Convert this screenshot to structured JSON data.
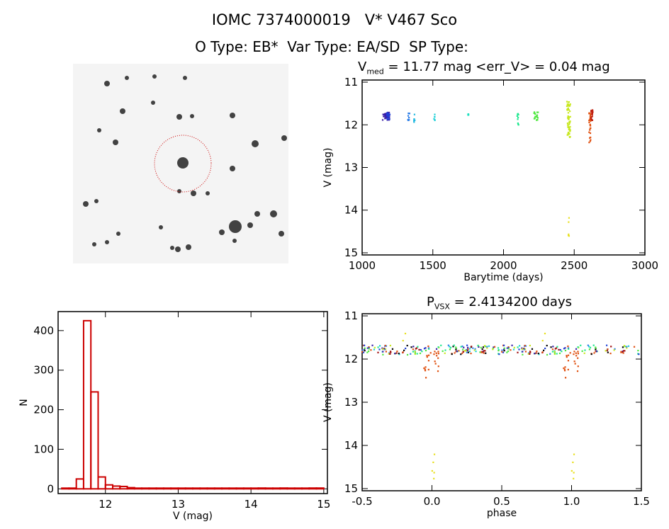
{
  "title": "IOMC 7374000019   V* V467 Sco",
  "subtitle": "O Type: EB*  Var Type: EA/SD  SP Type:",
  "chart_data": [
    {
      "type": "scatter",
      "name": "light-curve",
      "title_pre": "V",
      "title_sub": "med",
      "title_post": " = 11.77 mag <err_V> = 0.04 mag",
      "xlabel": "Barytime (days)",
      "ylabel": "V (mag)",
      "xlim": [
        1000,
        3000
      ],
      "ylim": [
        15.05,
        10.95
      ],
      "xticks": [
        1000,
        1500,
        2000,
        2500,
        3000
      ],
      "yticks": [
        11,
        12,
        13,
        14,
        15
      ],
      "clusters": [
        {
          "x": 1170,
          "dx": 25,
          "y0": 11.7,
          "y1": 11.9,
          "n": 40,
          "color": "#3a1fa8"
        },
        {
          "x": 1185,
          "dx": 10,
          "y0": 11.72,
          "y1": 11.88,
          "n": 15,
          "color": "#1f3fd8"
        },
        {
          "x": 1330,
          "dx": 6,
          "y0": 11.68,
          "y1": 11.9,
          "n": 10,
          "color": "#2f7fe8"
        },
        {
          "x": 1370,
          "dx": 4,
          "y0": 11.75,
          "y1": 11.95,
          "n": 6,
          "color": "#20b8e0"
        },
        {
          "x": 1510,
          "dx": 4,
          "y0": 11.75,
          "y1": 11.9,
          "n": 6,
          "color": "#20d0d8"
        },
        {
          "x": 1750,
          "dx": 3,
          "y0": 11.72,
          "y1": 11.8,
          "n": 4,
          "color": "#20e0c0"
        },
        {
          "x": 2100,
          "dx": 6,
          "y0": 11.7,
          "y1": 12.0,
          "n": 10,
          "color": "#20e890"
        },
        {
          "x": 2230,
          "dx": 15,
          "y0": 11.7,
          "y1": 11.9,
          "n": 20,
          "color": "#50e840"
        },
        {
          "x": 2460,
          "dx": 12,
          "y0": 11.45,
          "y1": 12.3,
          "n": 60,
          "color": "#c8e820"
        },
        {
          "x": 2462,
          "dx": 4,
          "y0": 14.1,
          "y1": 14.9,
          "n": 5,
          "color": "#e8e020"
        },
        {
          "x": 2610,
          "dx": 6,
          "y0": 11.7,
          "y1": 12.45,
          "n": 25,
          "color": "#e05010"
        },
        {
          "x": 2625,
          "dx": 6,
          "y0": 11.65,
          "y1": 11.9,
          "n": 20,
          "color": "#c02010"
        }
      ]
    },
    {
      "type": "bar",
      "name": "histogram",
      "xlabel": "V (mag)",
      "ylabel": "N",
      "xlim": [
        11.35,
        15.05
      ],
      "ylim": [
        -12,
        448
      ],
      "xticks": [
        12,
        13,
        14,
        15
      ],
      "yticks": [
        0,
        100,
        200,
        300,
        400
      ],
      "bin_width": 0.1,
      "bin_starts": [
        11.4,
        11.5,
        11.6,
        11.7,
        11.8,
        11.9,
        12.0,
        12.1,
        12.2,
        12.3,
        12.4,
        12.5,
        12.6,
        12.7,
        12.8,
        12.9,
        13.0,
        13.1,
        13.2,
        13.3,
        13.4,
        13.5,
        13.6,
        13.7,
        13.8,
        13.9,
        14.0,
        14.1,
        14.2,
        14.3,
        14.4,
        14.5,
        14.6,
        14.7,
        14.8,
        14.9
      ],
      "values": [
        1,
        1,
        25,
        425,
        245,
        30,
        10,
        7,
        6,
        3,
        1,
        0,
        0,
        0,
        0,
        0,
        0,
        0,
        0,
        0,
        0,
        0,
        0,
        0,
        0,
        0,
        0,
        2,
        0,
        0,
        2,
        0,
        0,
        0,
        2,
        2
      ],
      "color": "#cc0000"
    },
    {
      "type": "scatter",
      "name": "phased-light-curve",
      "title_pre": "P",
      "title_sub": "VSX",
      "title_post": " = 2.4134200 days",
      "xlabel": "phase",
      "ylabel": "V (mag)",
      "xlim": [
        -0.5,
        1.5
      ],
      "ylim": [
        15.05,
        10.95
      ],
      "xticks": [
        -0.5,
        0.0,
        0.5,
        1.0,
        1.5
      ],
      "yticks": [
        11,
        12,
        13,
        14,
        15
      ],
      "clusters": [
        {
          "x": 0.05,
          "dx": 0.9,
          "y0": 11.68,
          "y1": 11.9,
          "n": 160,
          "color": "mixed"
        },
        {
          "x": -0.04,
          "dx": 0.02,
          "y0": 11.9,
          "y1": 12.45,
          "n": 10,
          "color": "#e05010"
        },
        {
          "x": 0.03,
          "dx": 0.02,
          "y0": 11.8,
          "y1": 12.3,
          "n": 10,
          "color": "#e05010"
        },
        {
          "x": 0.01,
          "dx": 0.01,
          "y0": 14.1,
          "y1": 14.9,
          "n": 5,
          "color": "#e8e020"
        },
        {
          "x": 0.8,
          "dx": 0.01,
          "y0": 11.4,
          "y1": 11.6,
          "n": 2,
          "color": "#e8e020"
        }
      ]
    }
  ]
}
